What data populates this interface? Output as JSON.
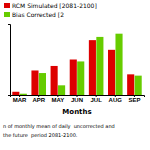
{
  "chart_data": {
    "type": "bar",
    "x_label": "Months",
    "categories": [
      "MAR",
      "APR",
      "MAY",
      "JUN",
      "JUL",
      "AUG",
      "SEP"
    ],
    "series": [
      {
        "name": "RCM Simulated [2081-2100]",
        "color": "#dd0000",
        "values": [
          0.5,
          3.8,
          4.5,
          5.5,
          8.5,
          7.0,
          3.2
        ]
      },
      {
        "name": "Bias Corrected [2",
        "color": "#66cc00",
        "values": [
          0.2,
          3.4,
          1.5,
          5.2,
          9.0,
          9.5,
          3.0
        ]
      }
    ],
    "ylim": [
      0,
      11
    ],
    "tick_labels": "x",
    "legend": "upper left",
    "grid": false,
    "annotations": [
      "n of monthly mean of daily  uncorrected and",
      "the future  period 2081-2100."
    ]
  }
}
